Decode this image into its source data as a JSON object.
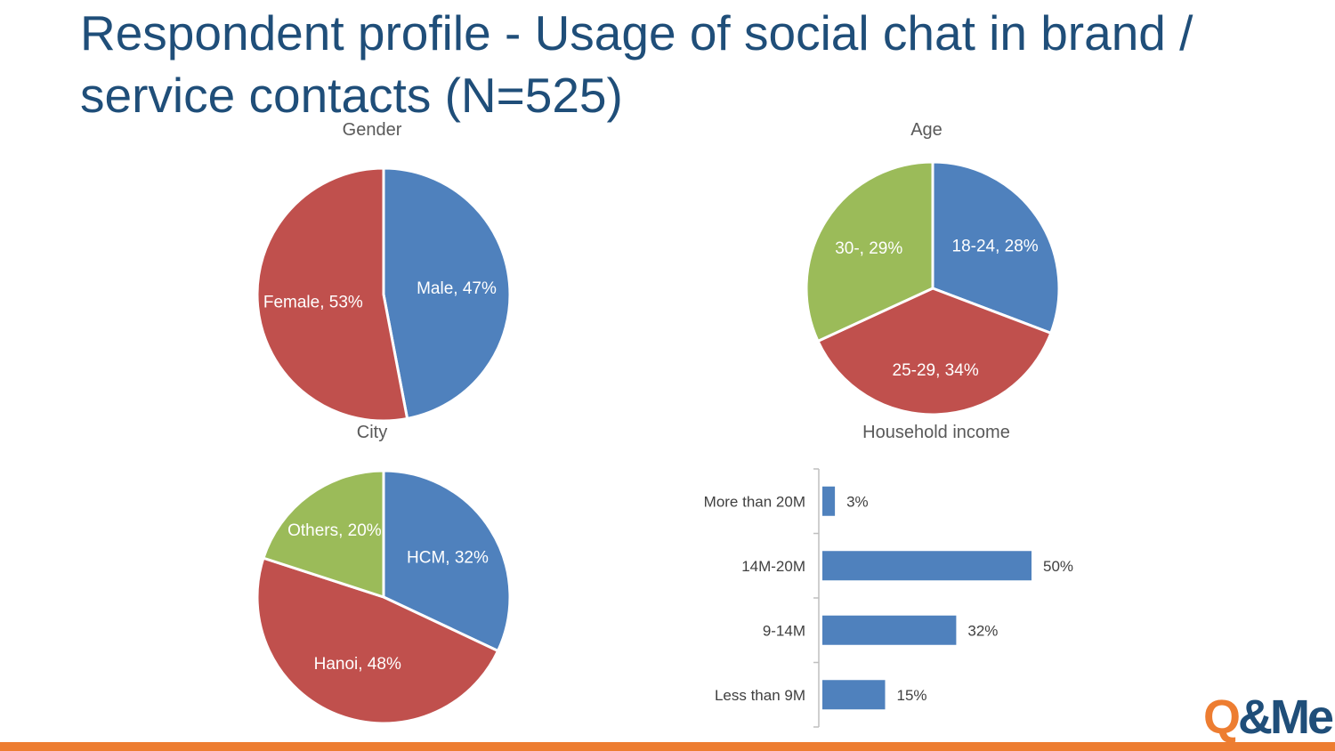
{
  "title": "Respondent profile - Usage of social chat in brand / service contacts (N=525)",
  "logo_text": "Q&Me",
  "colors": {
    "blue": "#4f81bd",
    "red": "#c0504d",
    "green": "#9bbb59",
    "title": "#1f4e79",
    "orange": "#ed7d31"
  },
  "chart_data": [
    {
      "type": "pie",
      "title": "Gender",
      "slices": [
        {
          "label": "Male, 47%",
          "value": 47,
          "color": "#4f81bd"
        },
        {
          "label": "Female, 53%",
          "value": 53,
          "color": "#c0504d"
        }
      ]
    },
    {
      "type": "pie",
      "title": "Age",
      "slices": [
        {
          "label": "18-24, 28%",
          "value": 28,
          "color": "#4f81bd"
        },
        {
          "label": "25-29, 34%",
          "value": 34,
          "color": "#c0504d"
        },
        {
          "label": "30-, 29%",
          "value": 29,
          "color": "#9bbb59"
        }
      ]
    },
    {
      "type": "pie",
      "title": "City",
      "slices": [
        {
          "label": "HCM, 32%",
          "value": 32,
          "color": "#4f81bd"
        },
        {
          "label": "Hanoi, 48%",
          "value": 48,
          "color": "#c0504d"
        },
        {
          "label": "Others, 20%",
          "value": 20,
          "color": "#9bbb59"
        }
      ]
    },
    {
      "type": "bar",
      "orientation": "horizontal",
      "title": "Household income",
      "categories": [
        "More than 20M",
        "14M-20M",
        "9-14M",
        "Less than 9M"
      ],
      "values": [
        3,
        50,
        32,
        15
      ],
      "value_labels": [
        "3%",
        "50%",
        "32%",
        "15%"
      ],
      "xlim": [
        0,
        100
      ],
      "color": "#4f81bd"
    }
  ]
}
